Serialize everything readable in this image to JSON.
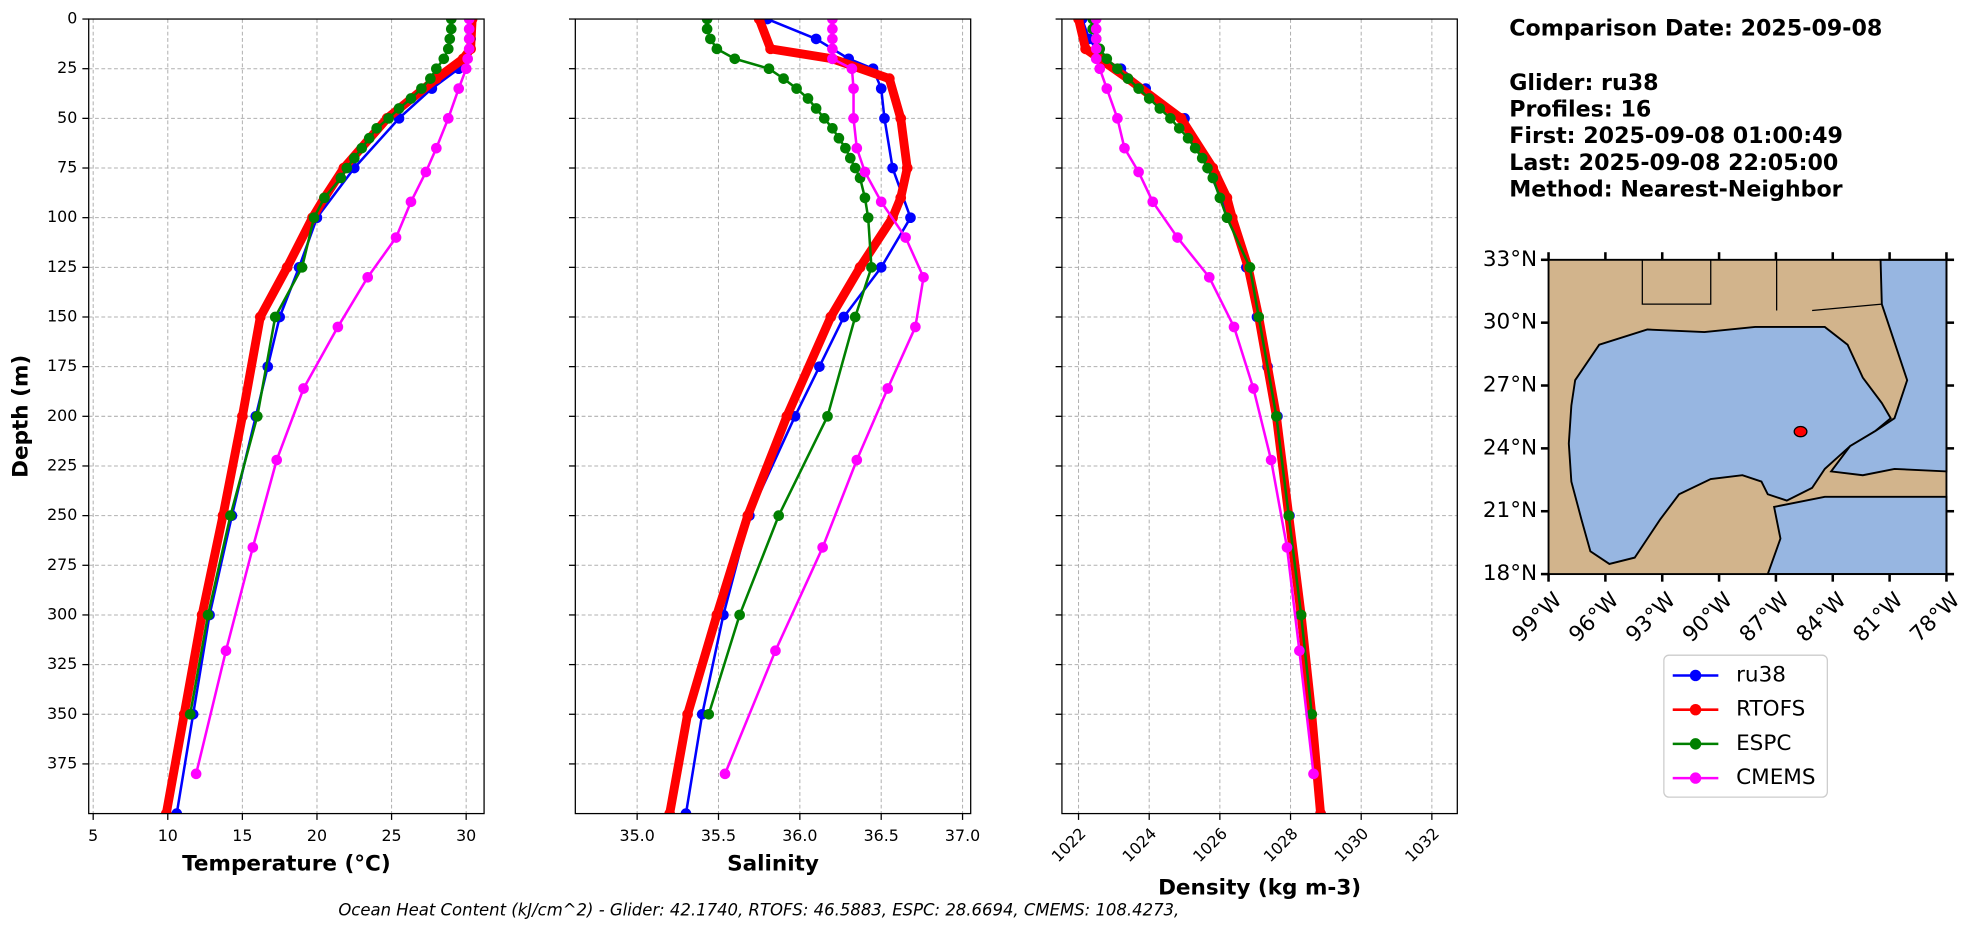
{
  "chart_data": [
    {
      "type": "line",
      "xlabel": "Temperature (°C)",
      "ylabel": "Depth (m)",
      "xlim": [
        4.7,
        31.2
      ],
      "xticks": [
        5,
        10,
        15,
        20,
        25,
        30
      ],
      "ylim": [
        0,
        400
      ],
      "yticks": [
        0,
        25,
        50,
        75,
        100,
        125,
        150,
        175,
        200,
        225,
        250,
        275,
        300,
        325,
        350,
        375
      ],
      "invert_y": true,
      "show_ytick_labels": true,
      "grid": true,
      "series": [
        {
          "name": "ru38",
          "color": "#0000ff",
          "linewidth": 2,
          "depth": [
            0,
            10,
            20,
            25,
            35,
            50,
            75,
            100,
            125,
            150,
            175,
            200,
            250,
            300,
            350,
            400
          ],
          "values": [
            30.3,
            30.3,
            30.0,
            29.5,
            27.7,
            25.5,
            22.5,
            20.0,
            18.8,
            17.5,
            16.7,
            15.9,
            14.3,
            12.8,
            11.7,
            10.6
          ]
        },
        {
          "name": "RTOFS",
          "color": "#ff0000",
          "linewidth": 7,
          "depth": [
            0,
            15,
            20,
            30,
            50,
            75,
            90,
            100,
            125,
            150,
            200,
            250,
            300,
            350,
            400
          ],
          "values": [
            30.4,
            30.3,
            29.8,
            28.0,
            24.7,
            21.8,
            20.5,
            19.7,
            18.0,
            16.2,
            15.0,
            13.7,
            12.3,
            11.1,
            9.9
          ]
        },
        {
          "name": "ESPC",
          "color": "#008000",
          "linewidth": 2,
          "depth": [
            0,
            5,
            10,
            15,
            20,
            25,
            30,
            35,
            40,
            45,
            50,
            55,
            60,
            65,
            70,
            75,
            80,
            90,
            100,
            125,
            150,
            200,
            250,
            300,
            350
          ],
          "values": [
            29.0,
            29.0,
            28.9,
            28.8,
            28.5,
            28.0,
            27.6,
            27.0,
            26.3,
            25.5,
            24.8,
            24.0,
            23.5,
            23.0,
            22.5,
            22.0,
            21.6,
            20.5,
            19.8,
            19.0,
            17.2,
            16.0,
            14.2,
            12.7,
            11.5
          ]
        },
        {
          "name": "CMEMS",
          "color": "#ff00ff",
          "linewidth": 2,
          "depth": [
            0,
            5,
            10,
            15,
            20,
            25,
            35,
            50,
            65,
            77,
            92,
            110,
            130,
            155,
            186,
            222,
            266,
            318,
            380
          ],
          "values": [
            30.2,
            30.2,
            30.2,
            30.2,
            30.1,
            30.0,
            29.5,
            28.8,
            28.0,
            27.3,
            26.3,
            25.3,
            23.4,
            21.4,
            19.1,
            17.3,
            15.7,
            13.9,
            11.9
          ]
        }
      ]
    },
    {
      "type": "line",
      "xlabel": "Salinity",
      "xlim": [
        34.62,
        37.05
      ],
      "xticks": [
        {
          "value": 35,
          "label": "35.0"
        },
        {
          "value": 35.5,
          "label": "35.5"
        },
        {
          "value": 36,
          "label": "36.0"
        },
        {
          "value": 36.5,
          "label": "36.5"
        },
        {
          "value": 37,
          "label": "37.0"
        }
      ],
      "ylim": [
        0,
        400
      ],
      "yticks": [
        0,
        25,
        50,
        75,
        100,
        125,
        150,
        175,
        200,
        225,
        250,
        275,
        300,
        325,
        350,
        375
      ],
      "invert_y": true,
      "show_ytick_labels": false,
      "grid": true,
      "series": [
        {
          "color": "#0000ff",
          "linewidth": 2,
          "depth": [
            0,
            10,
            20,
            25,
            35,
            50,
            75,
            100,
            125,
            150,
            175,
            200,
            250,
            300,
            350,
            400
          ],
          "values": [
            35.8,
            36.1,
            36.3,
            36.45,
            36.5,
            36.52,
            36.57,
            36.68,
            36.5,
            36.27,
            36.12,
            35.97,
            35.69,
            35.53,
            35.4,
            35.3
          ]
        },
        {
          "color": "#ff0000",
          "linewidth": 7,
          "depth": [
            0,
            15,
            20,
            30,
            50,
            75,
            90,
            100,
            125,
            150,
            200,
            250,
            300,
            350,
            400
          ],
          "values": [
            35.75,
            35.82,
            36.2,
            36.55,
            36.62,
            36.66,
            36.62,
            36.57,
            36.37,
            36.19,
            35.92,
            35.68,
            35.49,
            35.31,
            35.2
          ]
        },
        {
          "color": "#008000",
          "linewidth": 2,
          "depth": [
            0,
            5,
            10,
            15,
            20,
            25,
            30,
            35,
            40,
            45,
            50,
            55,
            60,
            65,
            70,
            75,
            80,
            90,
            100,
            125,
            150,
            200,
            250,
            300,
            350
          ],
          "values": [
            35.43,
            35.43,
            35.45,
            35.49,
            35.6,
            35.81,
            35.9,
            35.98,
            36.05,
            36.1,
            36.15,
            36.2,
            36.24,
            36.28,
            36.31,
            36.34,
            36.37,
            36.4,
            36.42,
            36.44,
            36.34,
            36.17,
            35.87,
            35.63,
            35.44
          ]
        },
        {
          "color": "#ff00ff",
          "linewidth": 2,
          "depth": [
            0,
            5,
            10,
            15,
            20,
            25,
            35,
            50,
            65,
            77,
            92,
            110,
            130,
            155,
            186,
            222,
            266,
            318,
            380
          ],
          "values": [
            36.2,
            36.2,
            36.2,
            36.2,
            36.2,
            36.32,
            36.33,
            36.33,
            36.35,
            36.4,
            36.5,
            36.65,
            36.76,
            36.71,
            36.54,
            36.35,
            36.14,
            35.85,
            35.54
          ]
        }
      ]
    },
    {
      "type": "line",
      "xlabel": "Density (kg m-3)",
      "xlim": [
        1021.53,
        1032.72
      ],
      "xticks": [
        1022,
        1024,
        1026,
        1028,
        1030,
        1032
      ],
      "xtick_rotation": 45,
      "ylim": [
        0,
        400
      ],
      "yticks": [
        0,
        25,
        50,
        75,
        100,
        125,
        150,
        175,
        200,
        225,
        250,
        275,
        300,
        325,
        350,
        375
      ],
      "invert_y": true,
      "show_ytick_labels": false,
      "grid": true,
      "series": [
        {
          "color": "#0000ff",
          "linewidth": 2,
          "depth": [
            0,
            10,
            20,
            25,
            35,
            50,
            75,
            100,
            125,
            150,
            175,
            200,
            250,
            300,
            350,
            400
          ],
          "values": [
            1022.1,
            1022.3,
            1022.7,
            1023.2,
            1023.9,
            1025.0,
            1025.66,
            1026.27,
            1026.75,
            1027.05,
            1027.35,
            1027.63,
            1027.97,
            1028.27,
            1028.57,
            1028.85
          ]
        },
        {
          "color": "#ff0000",
          "linewidth": 7,
          "depth": [
            0,
            15,
            20,
            30,
            50,
            75,
            90,
            100,
            125,
            150,
            200,
            250,
            300,
            350,
            400
          ],
          "values": [
            1022.0,
            1022.2,
            1022.6,
            1023.4,
            1024.9,
            1025.8,
            1026.2,
            1026.35,
            1026.8,
            1027.1,
            1027.6,
            1027.95,
            1028.3,
            1028.6,
            1028.85
          ]
        },
        {
          "color": "#008000",
          "linewidth": 2,
          "depth": [
            0,
            5,
            10,
            15,
            20,
            25,
            30,
            35,
            40,
            45,
            50,
            55,
            60,
            65,
            70,
            75,
            80,
            90,
            100,
            125,
            150,
            200,
            250,
            300,
            350
          ],
          "values": [
            1022.4,
            1022.4,
            1022.5,
            1022.6,
            1022.8,
            1023.1,
            1023.4,
            1023.7,
            1024.0,
            1024.3,
            1024.6,
            1024.85,
            1025.1,
            1025.3,
            1025.5,
            1025.65,
            1025.8,
            1026.0,
            1026.2,
            1026.85,
            1027.1,
            1027.6,
            1027.95,
            1028.3,
            1028.6
          ]
        },
        {
          "color": "#ff00ff",
          "linewidth": 2,
          "depth": [
            0,
            5,
            10,
            15,
            20,
            25,
            35,
            50,
            65,
            77,
            92,
            110,
            130,
            155,
            186,
            222,
            266,
            318,
            380
          ],
          "values": [
            1022.5,
            1022.5,
            1022.5,
            1022.5,
            1022.5,
            1022.6,
            1022.8,
            1023.1,
            1023.3,
            1023.7,
            1024.1,
            1024.8,
            1025.7,
            1026.4,
            1026.95,
            1027.45,
            1027.9,
            1028.25,
            1028.65
          ]
        }
      ]
    },
    {
      "type": "map",
      "xlim": [
        -99,
        -78
      ],
      "ylim": [
        18,
        33
      ],
      "xticks": [
        {
          "value": -99,
          "label": "99°W"
        },
        {
          "value": -96,
          "label": "96°W"
        },
        {
          "value": -93,
          "label": "93°W"
        },
        {
          "value": -90,
          "label": "90°W"
        },
        {
          "value": -87,
          "label": "87°W"
        },
        {
          "value": -84,
          "label": "84°W"
        },
        {
          "value": -81,
          "label": "81°W"
        },
        {
          "value": -78,
          "label": "78°W"
        }
      ],
      "yticks": [
        {
          "value": 18,
          "label": "18°N"
        },
        {
          "value": 21,
          "label": "21°N"
        },
        {
          "value": 24,
          "label": "24°N"
        },
        {
          "value": 27,
          "label": "27°N"
        },
        {
          "value": 30,
          "label": "30°N"
        },
        {
          "value": 33,
          "label": "33°N"
        }
      ],
      "x": [
        -85.7
      ],
      "y": [
        24.8
      ],
      "color": "#ff0000"
    }
  ],
  "info": [
    "Comparison Date: 2025-09-08",
    "Glider: ru38",
    "Profiles: 16",
    "First: 2025-09-08 01:00:49",
    "Last: 2025-09-08 22:05:00",
    "Method: Nearest-Neighbor"
  ],
  "footer": "Ocean Heat Content (kJ/cm^2) - Glider: 42.1740,  RTOFS: 46.5883,  ESPC: 28.6694,  CMEMS: 108.4273,"
}
